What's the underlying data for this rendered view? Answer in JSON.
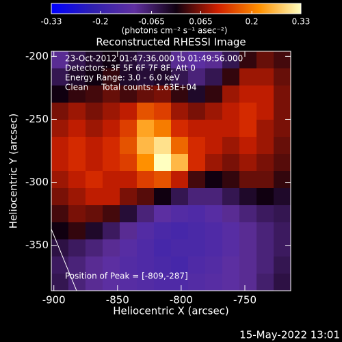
{
  "chart_data": {
    "type": "image",
    "title": "Reconstructed RHESSI Image",
    "colorbar_label": "(photons cm⁻² s⁻¹ asec⁻²)",
    "xlabel": "Heliocentric X (arcsec)",
    "ylabel": "Heliocentric Y (arcsec)",
    "annotations": [
      "23-Oct-2012 01:47:36.000 to 01:49:56.000",
      "Detectors: 3F 5F 6F 7F 8F, Att 0",
      "Energy Range: 3.0 - 6.0 keV",
      "Clean     Total counts: 1.63E+04"
    ],
    "peak_label": "Position of Peak = [-809,-287]",
    "footer": "15-May-2022 13:01",
    "xlim": [
      -902,
      -714
    ],
    "ylim": [
      -386,
      -196
    ],
    "xticks": [
      -900,
      -850,
      -800,
      -750
    ],
    "yticks": [
      -350,
      -300,
      -250,
      -200
    ],
    "zlim": [
      -0.33,
      0.33
    ],
    "zticks": [
      -0.33,
      -0.2,
      -0.065,
      0.065,
      0.2,
      0.33
    ],
    "colors": [
      "#0000ff",
      "#3020b0",
      "#6030a0",
      "#100010",
      "#d02000",
      "#ff9000",
      "#ffffc0"
    ],
    "z": [
      [
        -0.1,
        -0.05,
        -0.02,
        0,
        -0.03,
        -0.05,
        -0.05,
        -0.1,
        -0.12,
        -0.1,
        -0.05,
        0.02,
        0.05,
        0.03
      ],
      [
        -0.05,
        -0.02,
        0,
        0.02,
        -0.02,
        -0.03,
        -0.02,
        -0.05,
        -0.08,
        -0.05,
        0.02,
        0.08,
        0.08,
        0.05
      ],
      [
        0,
        0.02,
        0.03,
        0.05,
        0.03,
        0.05,
        0.06,
        0.02,
        -0.02,
        0.02,
        0.08,
        0.1,
        0.1,
        0.06
      ],
      [
        0.06,
        0.08,
        0.06,
        0.08,
        0.1,
        0.16,
        0.14,
        0.08,
        0.06,
        0.08,
        0.1,
        0.12,
        0.1,
        0.06
      ],
      [
        0.08,
        0.1,
        0.08,
        0.1,
        0.14,
        0.24,
        0.2,
        0.12,
        0.1,
        0.1,
        0.1,
        0.12,
        0.08,
        0.06
      ],
      [
        0.1,
        0.12,
        0.1,
        0.12,
        0.16,
        0.26,
        0.3,
        0.18,
        0.12,
        0.1,
        0.08,
        0.1,
        0.08,
        0.05
      ],
      [
        0.1,
        0.12,
        0.1,
        0.12,
        0.14,
        0.22,
        0.33,
        0.26,
        0.12,
        0.08,
        0.06,
        0.08,
        0.06,
        0.04
      ],
      [
        0.08,
        0.1,
        0.12,
        0.1,
        0.1,
        0.14,
        0.16,
        0.1,
        0.03,
        0,
        0.02,
        0.05,
        0.05,
        0.02
      ],
      [
        0.06,
        0.08,
        0.1,
        0.1,
        0.06,
        0.04,
        0,
        -0.05,
        -0.08,
        -0.08,
        -0.05,
        -0.02,
        0,
        -0.02
      ],
      [
        0.03,
        0.06,
        0.05,
        0.03,
        -0.03,
        -0.08,
        -0.12,
        -0.14,
        -0.15,
        -0.13,
        -0.1,
        -0.08,
        -0.06,
        -0.05
      ],
      [
        0,
        0.02,
        -0.02,
        -0.06,
        -0.1,
        -0.14,
        -0.16,
        -0.17,
        -0.16,
        -0.15,
        -0.13,
        -0.1,
        -0.08,
        -0.06
      ],
      [
        -0.04,
        -0.06,
        -0.08,
        -0.1,
        -0.13,
        -0.15,
        -0.17,
        -0.16,
        -0.16,
        -0.15,
        -0.13,
        -0.1,
        -0.08,
        -0.06
      ],
      [
        -0.06,
        -0.08,
        -0.1,
        -0.12,
        -0.14,
        -0.15,
        -0.16,
        -0.17,
        -0.15,
        -0.14,
        -0.12,
        -0.1,
        -0.08,
        -0.05
      ],
      [
        -0.05,
        -0.08,
        -0.1,
        -0.12,
        -0.13,
        -0.14,
        -0.15,
        -0.15,
        -0.14,
        -0.13,
        -0.12,
        -0.1,
        -0.07,
        -0.04
      ]
    ]
  }
}
